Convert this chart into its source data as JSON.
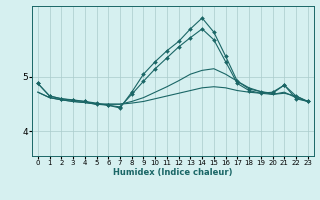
{
  "xlabel": "Humidex (Indice chaleur)",
  "background_color": "#d6f0f0",
  "grid_color": "#aacccc",
  "line_color": "#1a6666",
  "xlim": [
    -0.5,
    23.5
  ],
  "ylim": [
    3.55,
    6.3
  ],
  "yticks": [
    4,
    5
  ],
  "xticks": [
    0,
    1,
    2,
    3,
    4,
    5,
    6,
    7,
    8,
    9,
    10,
    11,
    12,
    13,
    14,
    15,
    16,
    17,
    18,
    19,
    20,
    21,
    22,
    23
  ],
  "lines": [
    {
      "x": [
        0,
        1,
        2,
        3,
        4,
        5,
        6,
        7,
        8,
        9,
        10,
        11,
        12,
        13,
        14,
        15,
        16,
        17,
        18,
        19,
        20,
        21,
        22,
        23
      ],
      "y": [
        4.72,
        4.62,
        4.58,
        4.55,
        4.53,
        4.5,
        4.5,
        4.5,
        4.52,
        4.55,
        4.6,
        4.65,
        4.7,
        4.75,
        4.8,
        4.82,
        4.8,
        4.75,
        4.72,
        4.7,
        4.68,
        4.72,
        4.62,
        4.55
      ],
      "marker": false
    },
    {
      "x": [
        0,
        1,
        2,
        3,
        4,
        5,
        6,
        7,
        8,
        9,
        10,
        11,
        12,
        13,
        14,
        15,
        16,
        17,
        18,
        19,
        20,
        21,
        22,
        23
      ],
      "y": [
        4.72,
        4.62,
        4.58,
        4.55,
        4.53,
        4.5,
        4.5,
        4.5,
        4.55,
        4.62,
        4.72,
        4.82,
        4.93,
        5.05,
        5.12,
        5.15,
        5.05,
        4.92,
        4.8,
        4.73,
        4.68,
        4.7,
        4.65,
        4.55
      ],
      "marker": false
    },
    {
      "x": [
        0,
        1,
        2,
        3,
        4,
        5,
        6,
        7,
        8,
        9,
        10,
        11,
        12,
        13,
        14,
        15,
        16,
        17,
        18,
        19,
        20,
        21,
        22,
        23
      ],
      "y": [
        4.88,
        4.65,
        4.6,
        4.58,
        4.55,
        4.52,
        4.48,
        4.45,
        4.68,
        4.92,
        5.15,
        5.35,
        5.55,
        5.72,
        5.88,
        5.68,
        5.28,
        4.88,
        4.75,
        4.7,
        4.72,
        4.85,
        4.65,
        4.55
      ],
      "marker": true
    },
    {
      "x": [
        0,
        1,
        2,
        3,
        4,
        5,
        6,
        7,
        8,
        9,
        10,
        11,
        12,
        13,
        14,
        15,
        16,
        17,
        18,
        19,
        20,
        21,
        22,
        23
      ],
      "y": [
        4.88,
        4.65,
        4.6,
        4.57,
        4.55,
        4.5,
        4.48,
        4.43,
        4.72,
        5.05,
        5.28,
        5.48,
        5.65,
        5.88,
        6.08,
        5.82,
        5.38,
        4.92,
        4.78,
        4.73,
        4.7,
        4.85,
        4.6,
        4.55
      ],
      "marker": true
    }
  ]
}
